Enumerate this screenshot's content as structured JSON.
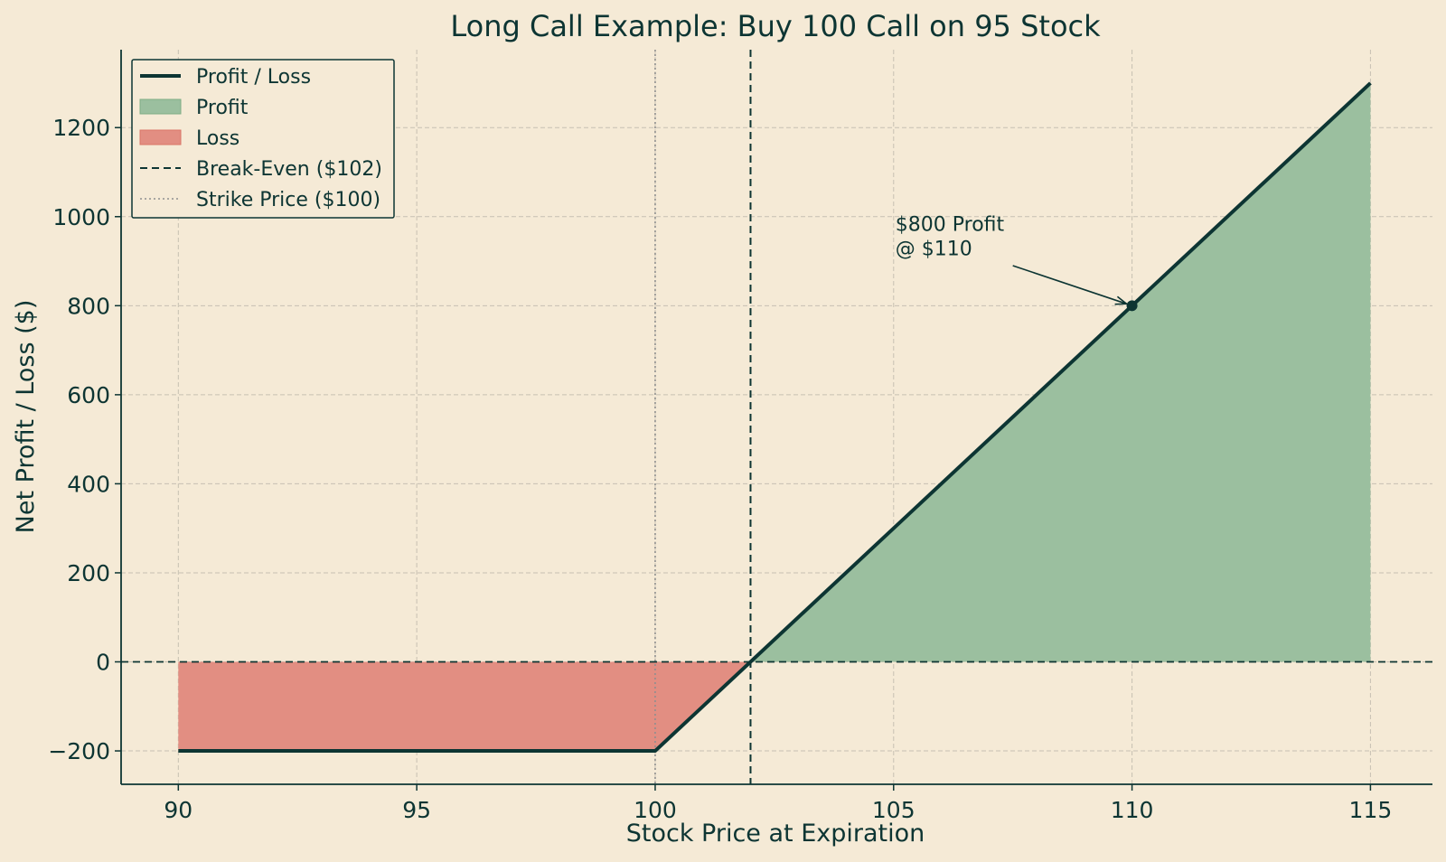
{
  "chart_data": {
    "type": "line",
    "title": "Long Call Example: Buy 100 Call on 95 Stock",
    "xlabel": "Stock Price at Expiration",
    "ylabel": "Net Profit / Loss ($)",
    "xlim": [
      88.8,
      116.3
    ],
    "ylim": [
      -275,
      1375
    ],
    "xticks": [
      90,
      95,
      100,
      105,
      110,
      115
    ],
    "yticks": [
      -200,
      0,
      200,
      400,
      600,
      800,
      1000,
      1200
    ],
    "ytick_labels": [
      "−200",
      "0",
      "200",
      "400",
      "600",
      "800",
      "1000",
      "1200"
    ],
    "xtick_labels": [
      "90",
      "95",
      "100",
      "105",
      "110",
      "115"
    ],
    "grid": true,
    "legend_position": "top-left",
    "series": [
      {
        "name": "Profit / Loss",
        "x": [
          90,
          100,
          115
        ],
        "y": [
          -200,
          -200,
          1300
        ],
        "color": "#0d3533"
      }
    ],
    "fills": [
      {
        "name": "Profit",
        "x": [
          102,
          115
        ],
        "y": [
          0,
          1300
        ],
        "color": "#9bbf9f"
      },
      {
        "name": "Loss",
        "x": [
          90,
          100,
          102
        ],
        "y": [
          -200,
          -200,
          0
        ],
        "color": "#e28e82"
      }
    ],
    "reference_lines": [
      {
        "name": "Break-Even ($102)",
        "orientation": "vertical",
        "x": 102,
        "style": "dashed",
        "color": "#0d3533"
      },
      {
        "name": "Strike Price ($100)",
        "orientation": "vertical",
        "x": 100,
        "style": "dotted",
        "color": "#8f8f8f"
      },
      {
        "name": "",
        "orientation": "horizontal",
        "y": 0,
        "style": "dashed",
        "color": "#0d3533"
      }
    ],
    "annotation": {
      "text_lines": [
        "$800 Profit",
        "@ $110"
      ],
      "point": {
        "x": 110,
        "y": 800
      },
      "text_anchor": {
        "x": 105,
        "y": 960
      }
    },
    "legend": [
      {
        "label": "Profit / Loss",
        "kind": "line"
      },
      {
        "label": "Profit",
        "kind": "patch-profit"
      },
      {
        "label": "Loss",
        "kind": "patch-loss"
      },
      {
        "label": "Break-Even ($102)",
        "kind": "dashed"
      },
      {
        "label": "Strike Price ($100)",
        "kind": "dotted"
      }
    ],
    "colors": {
      "background": "#f5ead6",
      "line": "#0d3533",
      "profit_fill": "#9bbf9f",
      "loss_fill": "#e28e82",
      "grid": "#c7c0b2",
      "strike": "#8f8f8f"
    }
  }
}
